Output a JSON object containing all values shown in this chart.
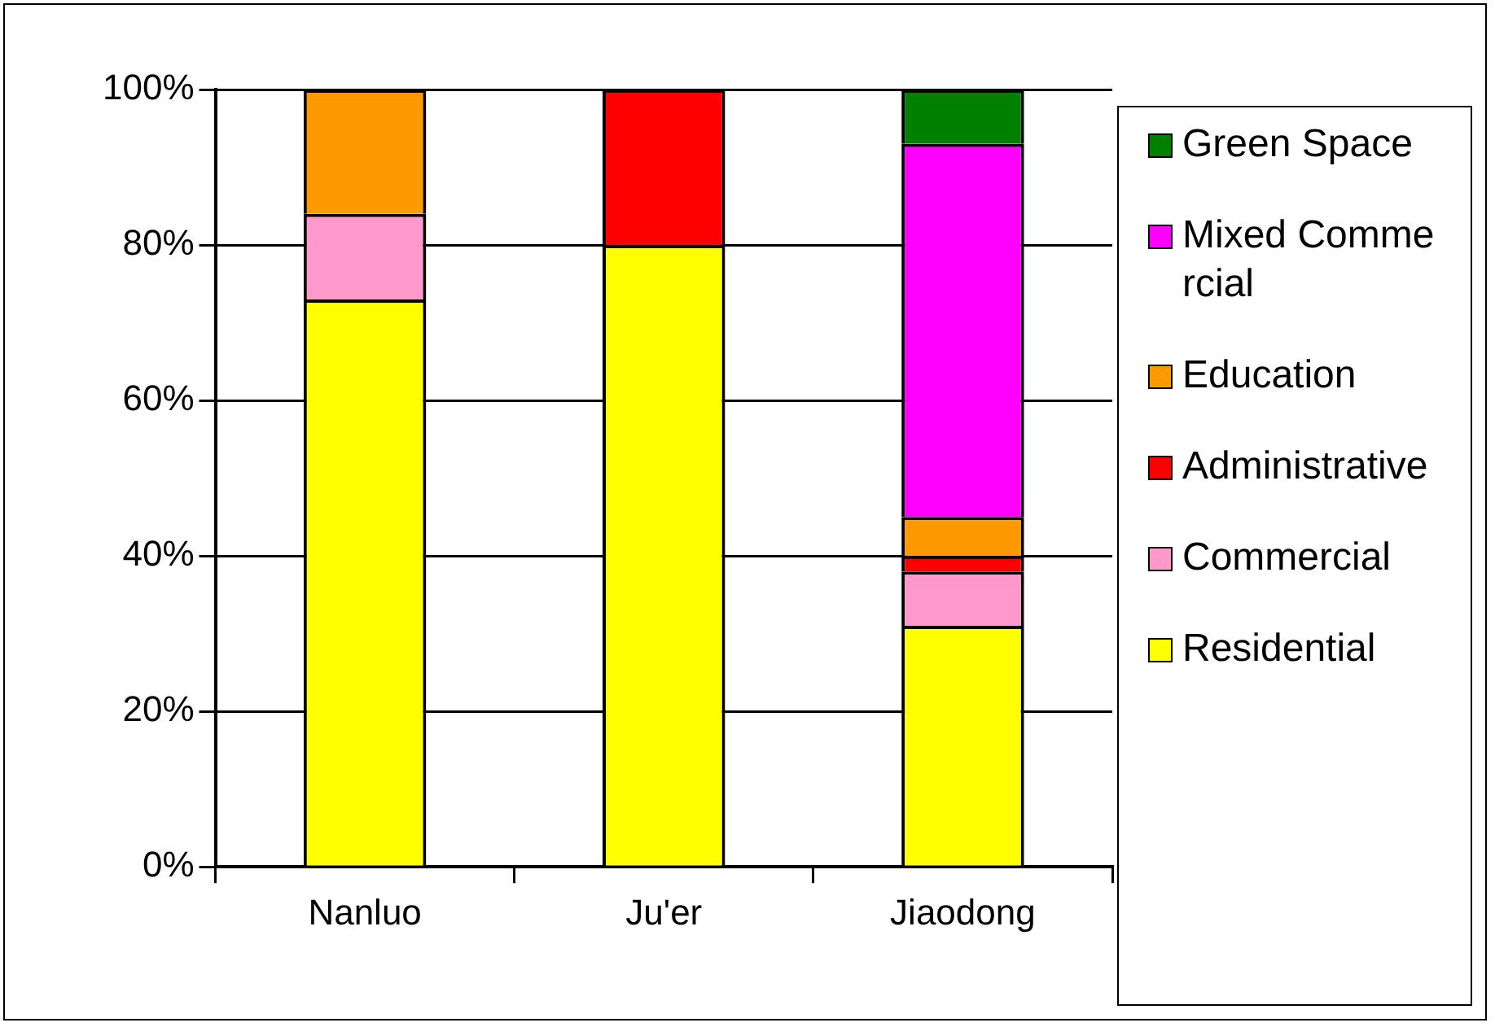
{
  "chart_data": {
    "type": "bar",
    "stacked": true,
    "categories": [
      "Nanluo",
      "Ju'er",
      "Jiaodong"
    ],
    "series": [
      {
        "name": "Residential",
        "color": "#ffff00",
        "values": [
          73,
          80,
          31
        ]
      },
      {
        "name": "Commercial",
        "color": "#ff99cc",
        "values": [
          11,
          null,
          7
        ]
      },
      {
        "name": "Administrative",
        "color": "#ff0000",
        "values": [
          null,
          20,
          2
        ]
      },
      {
        "name": "Education",
        "color": "#ff9900",
        "values": [
          16,
          null,
          5
        ]
      },
      {
        "name": "Mixed Commercial",
        "color": "#ff00ff",
        "values": [
          null,
          null,
          48
        ]
      },
      {
        "name": "Green Space",
        "color": "#008000",
        "values": [
          null,
          null,
          7
        ]
      }
    ],
    "ylim": [
      0,
      100
    ],
    "yticks": [
      {
        "value": 0,
        "label": "0%"
      },
      {
        "value": 20,
        "label": "20%"
      },
      {
        "value": 40,
        "label": "40%"
      },
      {
        "value": 60,
        "label": "60%"
      },
      {
        "value": 80,
        "label": "80%"
      },
      {
        "value": 100,
        "label": "100%"
      }
    ],
    "grid": "y",
    "legend": "right"
  }
}
